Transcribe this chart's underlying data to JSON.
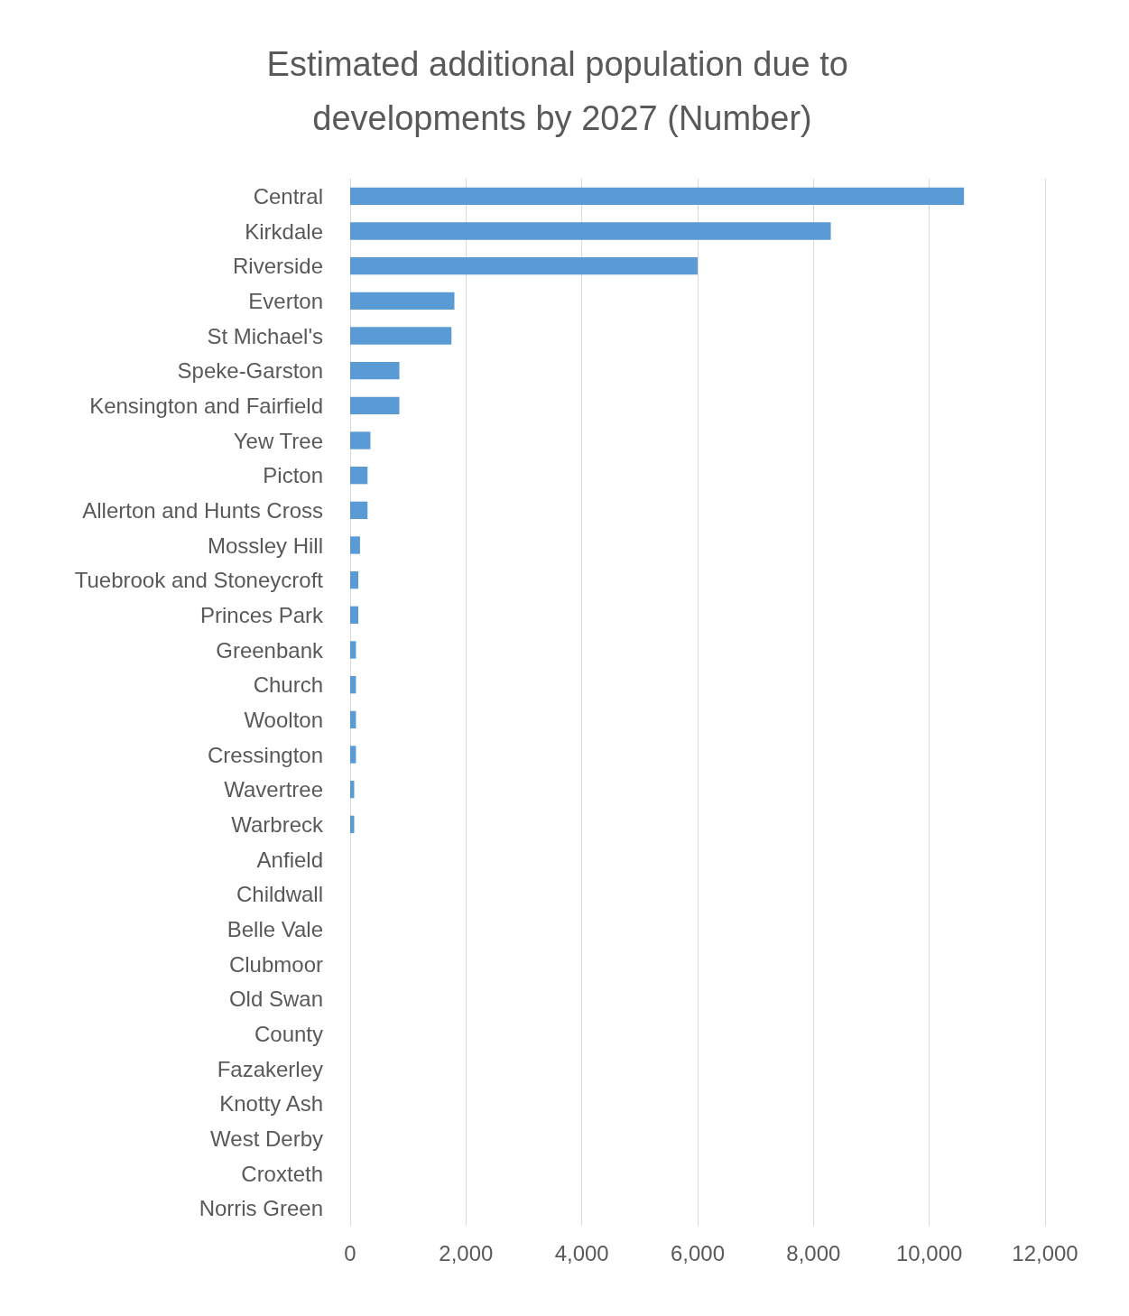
{
  "chart_data": {
    "type": "bar",
    "orientation": "horizontal",
    "title": "Estimated additional population due to developments by 2027 (Number)",
    "categories": [
      "Central",
      "Kirkdale",
      "Riverside",
      "Everton",
      "St Michael's",
      "Speke-Garston",
      "Kensington and Fairfield",
      "Yew Tree",
      "Picton",
      "Allerton and Hunts Cross",
      "Mossley Hill",
      "Tuebrook and Stoneycroft",
      "Princes Park",
      "Greenbank",
      "Church",
      "Woolton",
      "Cressington",
      "Wavertree",
      "Warbreck",
      "Anfield",
      "Childwall",
      "Belle Vale",
      "Clubmoor",
      "Old Swan",
      "County",
      "Fazakerley",
      "Knotty Ash",
      "West Derby",
      "Croxteth",
      "Norris Green"
    ],
    "values": [
      10600,
      8300,
      6000,
      1800,
      1750,
      850,
      850,
      350,
      300,
      300,
      170,
      140,
      140,
      100,
      100,
      100,
      100,
      70,
      70,
      0,
      0,
      0,
      0,
      0,
      0,
      0,
      0,
      0,
      0,
      0
    ],
    "color": "#5b9bd5",
    "xlim": [
      0,
      12000
    ],
    "xticks": [
      0,
      {
        "value": 2000,
        "label": "2,000"
      },
      {
        "value": 4000,
        "label": "4,000"
      },
      {
        "value": 6000,
        "label": "6,000"
      },
      {
        "value": 8000,
        "label": "8,000"
      },
      {
        "value": 10000,
        "label": "10,000"
      },
      {
        "value": 12000,
        "label": "12,000"
      }
    ],
    "grid": "x"
  }
}
